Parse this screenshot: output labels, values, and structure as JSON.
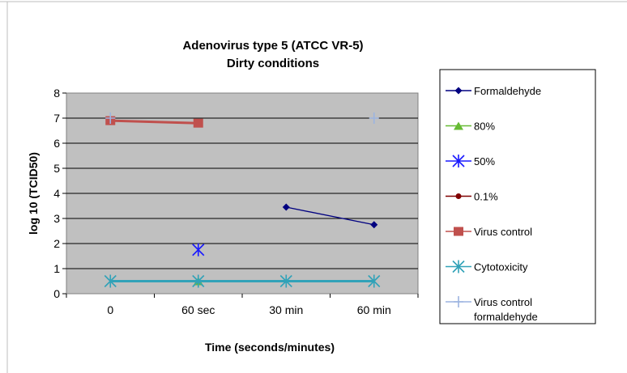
{
  "chart_data": {
    "type": "line",
    "title": [
      "Adenovirus type 5 (ATCC VR-5)",
      "Dirty conditions"
    ],
    "xlabel": "Time (seconds/minutes)",
    "ylabel": "log 10 (TCID50)",
    "categories": [
      "0",
      "60 sec",
      "30 min",
      "60 min"
    ],
    "ylim": [
      0,
      8
    ],
    "yticks": [
      "0",
      "1",
      "2",
      "3",
      "4",
      "5",
      "6",
      "7",
      "8"
    ],
    "grid": true,
    "plot_background": "#c0c0c0",
    "legend_position": "right",
    "series": [
      {
        "name": "Formaldehyde",
        "values": [
          null,
          null,
          3.45,
          2.75
        ],
        "color": "#000080",
        "marker": "diamond"
      },
      {
        "name": "80%",
        "values": [
          null,
          0.5,
          null,
          null
        ],
        "color": "#66bb33",
        "marker": "triangle"
      },
      {
        "name": "50%",
        "values": [
          null,
          1.75,
          null,
          null
        ],
        "color": "#1a1aff",
        "marker": "asterisk"
      },
      {
        "name": "0.1%",
        "values": [
          null,
          null,
          null,
          null
        ],
        "color": "#800000",
        "marker": "circle"
      },
      {
        "name": "Virus control",
        "values": [
          6.9,
          6.8,
          null,
          null
        ],
        "color": "#c0504d",
        "marker": "square"
      },
      {
        "name": "Cytotoxicity",
        "values": [
          0.5,
          0.5,
          0.5,
          0.5
        ],
        "color": "#31a2b8",
        "marker": "asterisk"
      },
      {
        "name": "Virus control formaldehyde",
        "legend_lines": [
          "Virus control",
          "formaldehyde"
        ],
        "values": [
          7.0,
          null,
          null,
          7.0
        ],
        "color": "#9cb4e0",
        "marker": "plus"
      }
    ]
  }
}
